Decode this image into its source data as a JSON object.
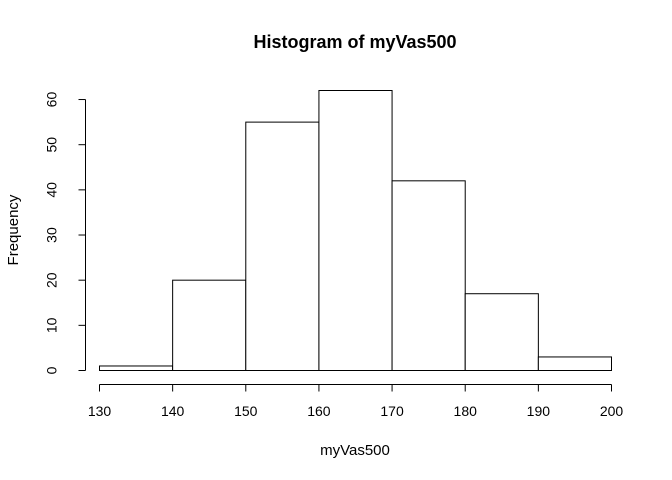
{
  "chart_data": {
    "type": "bar",
    "title": "Histogram of myVas500",
    "xlabel": "myVas500",
    "ylabel": "Frequency",
    "bins": [
      {
        "from": 130,
        "to": 140,
        "count": 1
      },
      {
        "from": 140,
        "to": 150,
        "count": 20
      },
      {
        "from": 150,
        "to": 160,
        "count": 55
      },
      {
        "from": 160,
        "to": 170,
        "count": 62
      },
      {
        "from": 170,
        "to": 180,
        "count": 42
      },
      {
        "from": 180,
        "to": 190,
        "count": 17
      },
      {
        "from": 190,
        "to": 200,
        "count": 3
      }
    ],
    "xlim": [
      130,
      200
    ],
    "ylim": [
      0,
      62
    ],
    "x_ticks": [
      "130",
      "140",
      "150",
      "160",
      "170",
      "180",
      "190",
      "200"
    ],
    "y_ticks": [
      "0",
      "10",
      "20",
      "30",
      "40",
      "50",
      "60"
    ],
    "grid": false,
    "legend": "none",
    "bar_fill": "#ffffff",
    "bar_stroke": "#000000"
  }
}
